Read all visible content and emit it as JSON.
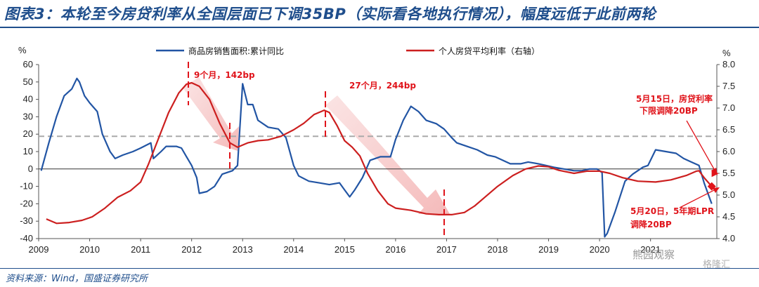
{
  "title": "图表3：本轮至今房贷利率从全国层面已下调35BP（实际看各地执行情况），幅度远低于此前两轮",
  "source": "资料来源：Wind，国盛证券研究所",
  "watermark": "熊园观察",
  "watermark2": "格隆汇",
  "colors": {
    "sales": "#2255a4",
    "rate": "#cc1f1f",
    "annotation": "#e0141b",
    "threshold": "#aaaaaa"
  },
  "chart_data": {
    "type": "line",
    "left_unit": "%",
    "right_unit": "%",
    "x_ticks": [
      "2009",
      "2010",
      "2011",
      "2012",
      "2013",
      "2014",
      "2015",
      "2016",
      "2017",
      "2018",
      "2019",
      "2020",
      "2021"
    ],
    "ylim_left": [
      -40,
      60
    ],
    "yticks_left": [
      "60",
      "50",
      "40",
      "30",
      "20",
      "10",
      "0",
      "-10",
      "-20",
      "-30",
      "-40"
    ],
    "ylim_right": [
      4.0,
      8.0
    ],
    "yticks_right": [
      "8.0",
      "7.5",
      "7.0",
      "6.5",
      "6.0",
      "5.5",
      "5.0",
      "4.5",
      "4.0"
    ],
    "reference_line_right": 6.35,
    "series": [
      {
        "name": "商品房销售面积:累计同比",
        "axis": "left",
        "points": [
          [
            2009.05,
            -1
          ],
          [
            2009.2,
            15
          ],
          [
            2009.35,
            30
          ],
          [
            2009.5,
            42
          ],
          [
            2009.65,
            46
          ],
          [
            2009.75,
            52
          ],
          [
            2009.8,
            50
          ],
          [
            2009.9,
            42
          ],
          [
            2010.0,
            38
          ],
          [
            2010.15,
            33
          ],
          [
            2010.25,
            20
          ],
          [
            2010.4,
            10
          ],
          [
            2010.5,
            6
          ],
          [
            2010.65,
            8
          ],
          [
            2010.85,
            10
          ],
          [
            2011.0,
            12
          ],
          [
            2011.2,
            15
          ],
          [
            2011.25,
            6
          ],
          [
            2011.4,
            10
          ],
          [
            2011.5,
            13
          ],
          [
            2011.7,
            13
          ],
          [
            2011.8,
            12
          ],
          [
            2011.9,
            7
          ],
          [
            2012.0,
            2
          ],
          [
            2012.1,
            -5
          ],
          [
            2012.15,
            -14
          ],
          [
            2012.3,
            -13
          ],
          [
            2012.45,
            -10
          ],
          [
            2012.6,
            -3
          ],
          [
            2012.8,
            -1
          ],
          [
            2012.9,
            2
          ],
          [
            2013.0,
            49
          ],
          [
            2013.1,
            37
          ],
          [
            2013.2,
            37
          ],
          [
            2013.3,
            28
          ],
          [
            2013.5,
            24
          ],
          [
            2013.7,
            23
          ],
          [
            2013.85,
            18
          ],
          [
            2014.0,
            2
          ],
          [
            2014.1,
            -4
          ],
          [
            2014.3,
            -7
          ],
          [
            2014.5,
            -8
          ],
          [
            2014.7,
            -9
          ],
          [
            2014.9,
            -8
          ],
          [
            2015.0,
            -12
          ],
          [
            2015.1,
            -16
          ],
          [
            2015.2,
            -12
          ],
          [
            2015.35,
            -5
          ],
          [
            2015.5,
            5
          ],
          [
            2015.7,
            7
          ],
          [
            2015.9,
            7
          ],
          [
            2016.0,
            17
          ],
          [
            2016.15,
            28
          ],
          [
            2016.3,
            36
          ],
          [
            2016.45,
            33
          ],
          [
            2016.6,
            28
          ],
          [
            2016.8,
            26
          ],
          [
            2016.95,
            23
          ],
          [
            2017.1,
            18
          ],
          [
            2017.2,
            15
          ],
          [
            2017.4,
            13
          ],
          [
            2017.6,
            11
          ],
          [
            2017.8,
            8
          ],
          [
            2017.95,
            7
          ],
          [
            2018.1,
            5
          ],
          [
            2018.25,
            3
          ],
          [
            2018.45,
            3
          ],
          [
            2018.6,
            4
          ],
          [
            2018.8,
            3
          ],
          [
            2018.95,
            2
          ],
          [
            2019.1,
            1
          ],
          [
            2019.3,
            0
          ],
          [
            2019.5,
            -1
          ],
          [
            2019.65,
            -1
          ],
          [
            2019.8,
            0
          ],
          [
            2019.95,
            0
          ],
          [
            2020.05,
            -2
          ],
          [
            2020.1,
            -39
          ],
          [
            2020.15,
            -37
          ],
          [
            2020.3,
            -25
          ],
          [
            2020.5,
            -7
          ],
          [
            2020.65,
            -3
          ],
          [
            2020.85,
            1
          ],
          [
            2020.95,
            2
          ],
          [
            2021.1,
            11
          ],
          [
            2021.3,
            10
          ],
          [
            2021.5,
            9
          ],
          [
            2021.65,
            6
          ],
          [
            2021.8,
            4
          ],
          [
            2021.95,
            2
          ],
          [
            2022.05,
            -8
          ],
          [
            2022.2,
            -20
          ]
        ]
      },
      {
        "name": "个人房贷平均利率（右轴）",
        "axis": "right",
        "points": [
          [
            2009.15,
            4.45
          ],
          [
            2009.35,
            4.35
          ],
          [
            2009.6,
            4.37
          ],
          [
            2009.85,
            4.42
          ],
          [
            2010.05,
            4.5
          ],
          [
            2010.3,
            4.7
          ],
          [
            2010.55,
            4.95
          ],
          [
            2010.8,
            5.1
          ],
          [
            2011.0,
            5.3
          ],
          [
            2011.15,
            5.7
          ],
          [
            2011.35,
            6.3
          ],
          [
            2011.55,
            6.9
          ],
          [
            2011.75,
            7.35
          ],
          [
            2011.9,
            7.55
          ],
          [
            2012.0,
            7.58
          ],
          [
            2012.15,
            7.5
          ],
          [
            2012.35,
            7.2
          ],
          [
            2012.55,
            6.65
          ],
          [
            2012.75,
            6.2
          ],
          [
            2012.9,
            6.1
          ],
          [
            2013.1,
            6.2
          ],
          [
            2013.3,
            6.25
          ],
          [
            2013.5,
            6.27
          ],
          [
            2013.75,
            6.35
          ],
          [
            2014.0,
            6.5
          ],
          [
            2014.2,
            6.65
          ],
          [
            2014.4,
            6.85
          ],
          [
            2014.6,
            6.95
          ],
          [
            2014.7,
            6.9
          ],
          [
            2014.85,
            6.6
          ],
          [
            2015.0,
            6.25
          ],
          [
            2015.15,
            6.1
          ],
          [
            2015.3,
            5.9
          ],
          [
            2015.45,
            5.5
          ],
          [
            2015.65,
            5.1
          ],
          [
            2015.85,
            4.8
          ],
          [
            2016.0,
            4.7
          ],
          [
            2016.3,
            4.65
          ],
          [
            2016.6,
            4.57
          ],
          [
            2016.85,
            4.55
          ],
          [
            2017.1,
            4.55
          ],
          [
            2017.35,
            4.6
          ],
          [
            2017.55,
            4.75
          ],
          [
            2017.75,
            4.95
          ],
          [
            2018.0,
            5.2
          ],
          [
            2018.3,
            5.45
          ],
          [
            2018.55,
            5.6
          ],
          [
            2018.8,
            5.67
          ],
          [
            2019.0,
            5.65
          ],
          [
            2019.2,
            5.57
          ],
          [
            2019.5,
            5.5
          ],
          [
            2019.75,
            5.55
          ],
          [
            2020.0,
            5.55
          ],
          [
            2020.2,
            5.5
          ],
          [
            2020.45,
            5.4
          ],
          [
            2020.75,
            5.32
          ],
          [
            2021.1,
            5.3
          ],
          [
            2021.4,
            5.35
          ],
          [
            2021.7,
            5.45
          ],
          [
            2021.9,
            5.55
          ],
          [
            2021.95,
            5.56
          ],
          [
            2022.05,
            5.4
          ],
          [
            2022.2,
            5.2
          ]
        ]
      }
    ],
    "annotations": [
      {
        "text": "9个月，142bp"
      },
      {
        "text": "27个月，244bp"
      },
      {
        "text": "5月15日，房贷利率"
      },
      {
        "text": "下限调降20BP"
      },
      {
        "text": "5月20日，5年期LPR"
      },
      {
        "text": "调降20BP"
      }
    ]
  }
}
